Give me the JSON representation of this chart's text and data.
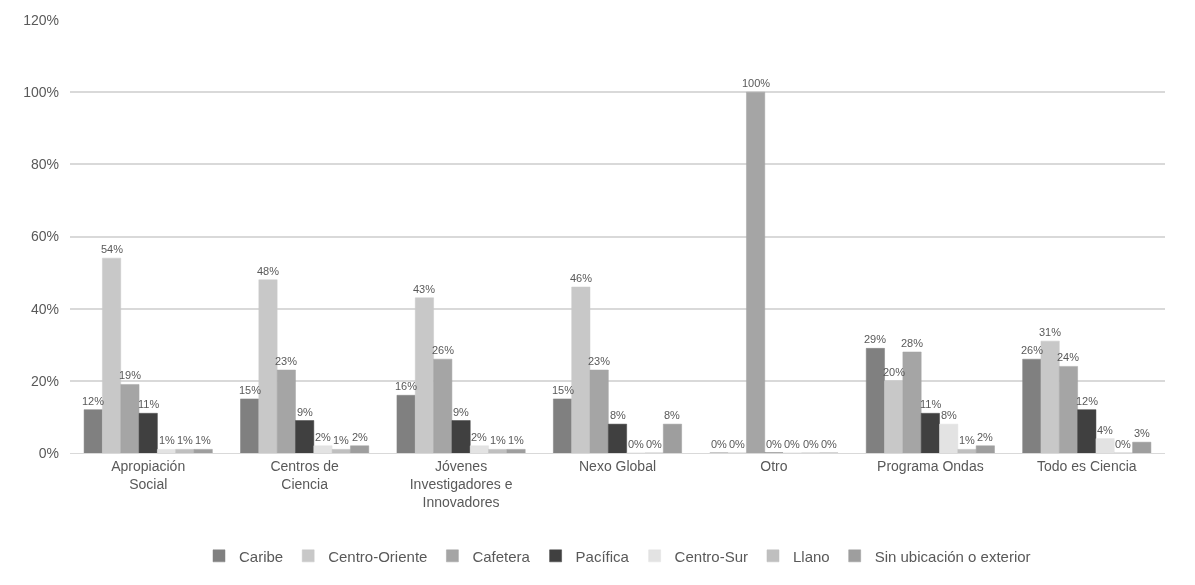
{
  "chart_data": {
    "type": "bar",
    "categories": [
      "Apropiación Social",
      "Centros de Ciencia",
      "Jóvenes Investigadores e Innovadores",
      "Nexo Global",
      "Otro",
      "Programa Ondas",
      "Todo es Ciencia"
    ],
    "series": [
      {
        "name": "Caribe",
        "color": "#808080",
        "values": [
          12,
          15,
          16,
          15,
          0,
          29,
          26
        ],
        "value_labels": [
          "12%",
          "15%",
          "16%",
          "15%",
          "0%",
          "29%",
          "26%"
        ]
      },
      {
        "name": "Centro-Oriente",
        "color": "#c8c8c8",
        "values": [
          54,
          48,
          43,
          46,
          0,
          20,
          31
        ],
        "value_labels": [
          "54%",
          "48%",
          "43%",
          "46%",
          "0%",
          "20%",
          "31%"
        ]
      },
      {
        "name": "Cafetera",
        "color": "#a5a5a5",
        "values": [
          19,
          23,
          26,
          23,
          100,
          28,
          24
        ],
        "value_labels": [
          "19%",
          "23%",
          "26%",
          "23%",
          "100%",
          "28%",
          "24%"
        ]
      },
      {
        "name": "Pacífica",
        "color": "#404040",
        "values": [
          11,
          9,
          9,
          8,
          0,
          11,
          12
        ],
        "value_labels": [
          "11%",
          "9%",
          "9%",
          "8%",
          "0%",
          "11%",
          "12%"
        ]
      },
      {
        "name": "Centro-Sur",
        "color": "#e3e3e3",
        "values": [
          1,
          2,
          2,
          0,
          0,
          8,
          4
        ],
        "value_labels": [
          "1%",
          "2%",
          "2%",
          "0%",
          "0%",
          "8%",
          "4%"
        ]
      },
      {
        "name": "Llano",
        "color": "#bfbfbf",
        "values": [
          1,
          1,
          1,
          0,
          0,
          1,
          0
        ],
        "value_labels": [
          "1%",
          "1%",
          "1%",
          "0%",
          "0%",
          "1%",
          "0%"
        ]
      },
      {
        "name": "Sin ubicación o exterior",
        "color": "#9e9e9e",
        "values": [
          1,
          2,
          1,
          8,
          0,
          2,
          3
        ],
        "value_labels": [
          "1%",
          "2%",
          "1%",
          "8%",
          "0%",
          "2%",
          "3%"
        ]
      }
    ],
    "ylim": [
      0,
      120
    ],
    "yticks": [
      {
        "value": 0,
        "label": "0%"
      },
      {
        "value": 20,
        "label": "20%"
      },
      {
        "value": 40,
        "label": "40%"
      },
      {
        "value": 60,
        "label": "60%"
      },
      {
        "value": 80,
        "label": "80%"
      },
      {
        "value": 100,
        "label": "100%"
      },
      {
        "value": 120,
        "label": "120%"
      }
    ],
    "grid": "y",
    "legend": "bottom"
  }
}
